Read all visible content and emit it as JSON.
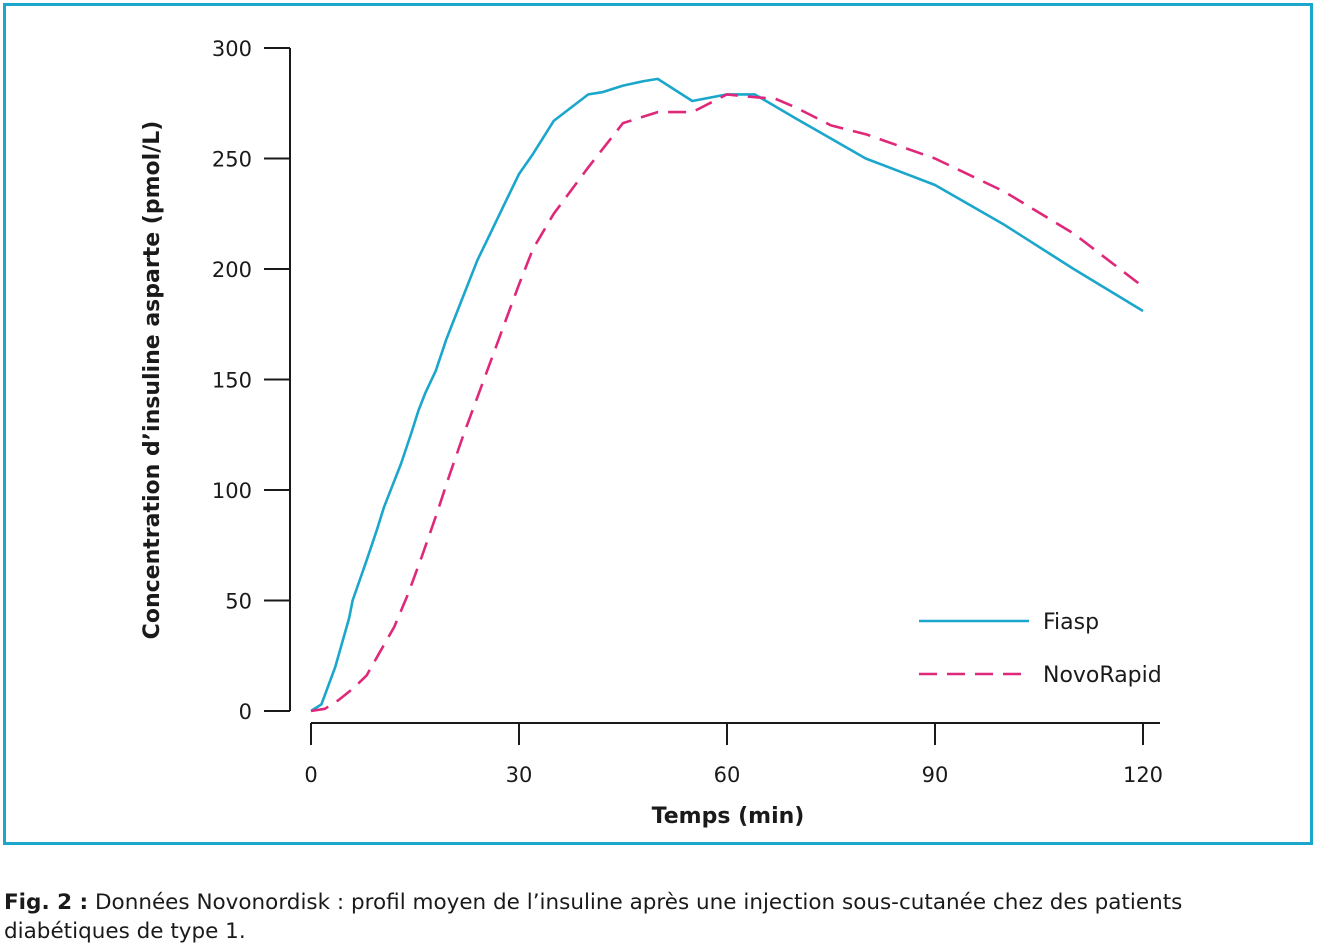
{
  "chart_data": {
    "type": "line",
    "xlabel": "Temps (min)",
    "ylabel": "Concentration d’insuline asparte (pmol/L)",
    "xlim": [
      0,
      120
    ],
    "ylim": [
      0,
      300
    ],
    "xticks": [
      0,
      30,
      60,
      90,
      120
    ],
    "yticks": [
      0,
      50,
      100,
      150,
      200,
      250,
      300
    ],
    "grid": false,
    "legend": "bottom-right",
    "series": [
      {
        "name": "Fiasp",
        "color": "#1ba6cc",
        "style": "solid",
        "points": [
          [
            0,
            0
          ],
          [
            1.5,
            3
          ],
          [
            3.5,
            20
          ],
          [
            5.5,
            42
          ],
          [
            6.0,
            50
          ],
          [
            8,
            68
          ],
          [
            9.5,
            82
          ],
          [
            10.5,
            92
          ],
          [
            13,
            112
          ],
          [
            14.5,
            126
          ],
          [
            15.5,
            136
          ],
          [
            16.5,
            144
          ],
          [
            18,
            154
          ],
          [
            19.5,
            168
          ],
          [
            20.5,
            176
          ],
          [
            22,
            188
          ],
          [
            24,
            204
          ],
          [
            26,
            217
          ],
          [
            28,
            230
          ],
          [
            30,
            243
          ],
          [
            32,
            252
          ],
          [
            35,
            267
          ],
          [
            40,
            279
          ],
          [
            42,
            280
          ],
          [
            45,
            283
          ],
          [
            48,
            285
          ],
          [
            50,
            286
          ],
          [
            55,
            276
          ],
          [
            60,
            279
          ],
          [
            64,
            279
          ],
          [
            70,
            268
          ],
          [
            80,
            250
          ],
          [
            90,
            238
          ],
          [
            100,
            220
          ],
          [
            110,
            200
          ],
          [
            120,
            181
          ]
        ]
      },
      {
        "name": "NovoRapid",
        "color": "#e0287a",
        "style": "dashed",
        "points": [
          [
            0,
            0
          ],
          [
            2,
            1
          ],
          [
            4,
            5
          ],
          [
            6,
            10
          ],
          [
            8,
            16
          ],
          [
            10,
            27
          ],
          [
            12,
            38
          ],
          [
            14,
            53
          ],
          [
            16,
            70
          ],
          [
            18,
            88
          ],
          [
            20,
            107
          ],
          [
            22,
            125
          ],
          [
            24,
            142
          ],
          [
            26,
            159
          ],
          [
            28,
            176
          ],
          [
            30,
            193
          ],
          [
            32,
            209
          ],
          [
            35,
            225
          ],
          [
            40,
            246
          ],
          [
            45,
            266
          ],
          [
            50,
            271
          ],
          [
            55,
            271
          ],
          [
            60,
            279
          ],
          [
            63,
            278
          ],
          [
            67,
            277
          ],
          [
            70,
            273
          ],
          [
            75,
            265
          ],
          [
            80,
            261
          ],
          [
            90,
            250
          ],
          [
            100,
            235
          ],
          [
            110,
            216
          ],
          [
            120,
            192
          ]
        ]
      }
    ]
  },
  "caption": {
    "label": "Fig. 2 :",
    "text": " Données Novonordisk : profil moyen de l’insuline après une injection sous-cutanée chez des patients diabétiques de type 1."
  }
}
